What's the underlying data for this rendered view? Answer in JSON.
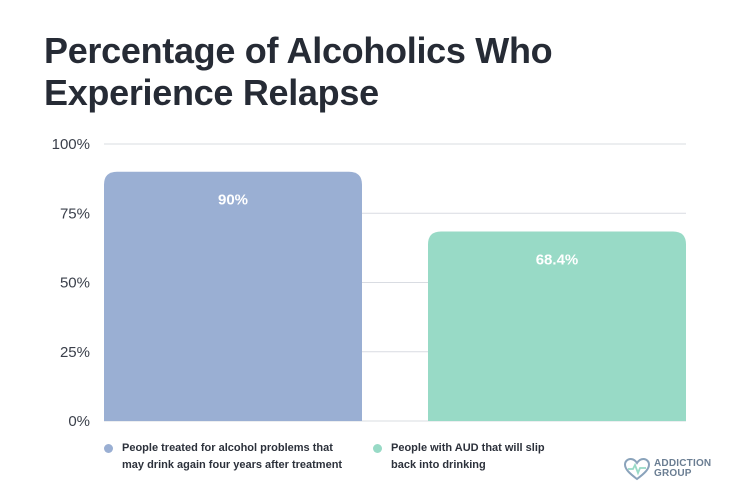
{
  "chart_data": {
    "type": "bar",
    "title": "Percentage of Alcoholics Who Experience Relapse",
    "categories": [
      "People treated for alcohol problems that may drink again four years after treatment",
      "People with AUD that will slip back into drinking"
    ],
    "values": [
      90,
      68.4
    ],
    "value_labels": [
      "90%",
      "68.4%"
    ],
    "colors": [
      "#9aafd3",
      "#98dac6"
    ],
    "ylim": [
      0,
      100
    ],
    "yticks": [
      0,
      25,
      50,
      75,
      100
    ],
    "ytick_labels": [
      "0%",
      "25%",
      "50%",
      "75%",
      "100%"
    ],
    "grid": true,
    "legend_placement": "bottom",
    "legend": [
      {
        "line1": "People treated for alcohol problems that",
        "line2": "may drink again four years after treatment",
        "color": "#9aafd3"
      },
      {
        "line1": "People with AUD that will slip",
        "line2": "back into drinking",
        "color": "#98dac6"
      }
    ]
  },
  "logo": {
    "line1": "ADDICTION",
    "line2": "GROUP",
    "icon": "heart-pulse-icon",
    "color": "#6a7d92"
  }
}
